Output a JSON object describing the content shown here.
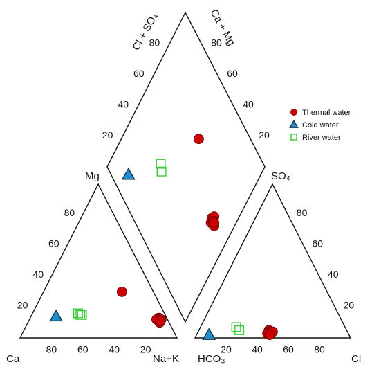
{
  "chart_data": {
    "type": "scatter",
    "subtype": "piper-diagram",
    "axes": {
      "cation_triangle": {
        "vertices": [
          "Ca",
          "Mg",
          "Na+K"
        ],
        "ticks": [
          "20",
          "40",
          "60",
          "80"
        ]
      },
      "anion_triangle": {
        "vertices": [
          "HCO3",
          "SO4",
          "Cl"
        ],
        "ticks": [
          "20",
          "40",
          "60",
          "80"
        ]
      },
      "diamond": {
        "upper_left_axis": "Cl + SO4",
        "upper_right_axis": "Ca + Mg",
        "ticks": [
          "20",
          "40",
          "60",
          "80"
        ]
      }
    },
    "labels": {
      "cl_so4": "Cl + SO₄",
      "ca_mg": "Ca + Mg",
      "mg": "Mg",
      "ca": "Ca",
      "nak": "Na+K",
      "so4": "SO₄",
      "hco3": "HCO₃",
      "cl": "Cl"
    },
    "legend": {
      "position": "top-right"
    },
    "series": [
      {
        "name": "Thermal water",
        "color": "#cc0000",
        "marker": "circle",
        "cation": [
          {
            "ca": 20,
            "mg": 30,
            "na_k": 50
          },
          {
            "ca": 5,
            "mg": 13,
            "na_k": 82
          },
          {
            "ca": 7,
            "mg": 12,
            "na_k": 81
          },
          {
            "ca": 4,
            "mg": 12,
            "na_k": 84
          },
          {
            "ca": 6,
            "mg": 10,
            "na_k": 84
          },
          {
            "ca": 5,
            "mg": 11,
            "na_k": 84
          }
        ],
        "anion": [
          {
            "hco3": 50,
            "so4": 5,
            "cl": 45
          },
          {
            "hco3": 50,
            "so4": 4,
            "cl": 46
          },
          {
            "hco3": 52,
            "so4": 3,
            "cl": 45
          },
          {
            "hco3": 48,
            "so4": 4,
            "cl": 48
          },
          {
            "hco3": 51,
            "so4": 2,
            "cl": 47
          }
        ],
        "diamond": [
          {
            "cl_so4": 67,
            "ca_mg": 51
          },
          {
            "cl_so4": 50,
            "ca_mg": 17
          },
          {
            "cl_so4": 52,
            "ca_mg": 16
          },
          {
            "cl_so4": 48,
            "ca_mg": 16
          },
          {
            "cl_so4": 50,
            "ca_mg": 15
          },
          {
            "cl_so4": 49,
            "ca_mg": 13
          },
          {
            "cl_so4": 50,
            "ca_mg": 14
          }
        ]
      },
      {
        "name": "Cold water",
        "color": "#1e8fc8",
        "marker": "triangle",
        "cation": [
          {
            "ca": 70,
            "mg": 14,
            "na_k": 16
          }
        ],
        "anion": [
          {
            "hco3": 90,
            "so4": 2,
            "cl": 8
          }
        ],
        "diamond": [
          {
            "cl_so4": 11,
            "ca_mg": 84
          }
        ]
      },
      {
        "name": "River water",
        "color": "#33cc33",
        "marker": "square",
        "cation": [
          {
            "ca": 53,
            "mg": 15,
            "na_k": 32
          },
          {
            "ca": 54,
            "mg": 15,
            "na_k": 31
          },
          {
            "ca": 55,
            "mg": 16,
            "na_k": 29
          }
        ],
        "anion": [
          {
            "hco3": 70,
            "so4": 7,
            "cl": 23
          },
          {
            "hco3": 69,
            "so4": 5,
            "cl": 26
          }
        ],
        "diamond": [
          {
            "cl_so4": 35,
            "ca_mg": 67
          },
          {
            "cl_so4": 33,
            "ca_mg": 64
          }
        ]
      }
    ]
  }
}
